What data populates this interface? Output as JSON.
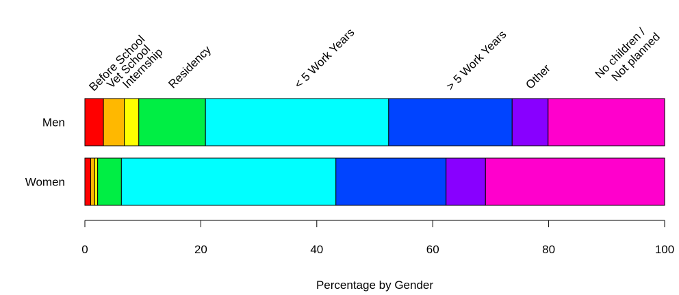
{
  "chart_data": {
    "type": "bar",
    "orientation": "horizontal",
    "stacked": true,
    "xlabel": "Percentage by Gender",
    "xlim": [
      0,
      100
    ],
    "xticks": [
      0,
      20,
      40,
      60,
      80,
      100
    ],
    "grid": false,
    "legend": "none",
    "categories": [
      "Men",
      "Women"
    ],
    "segment_labels": [
      "Before School",
      "Vet School",
      "Internship",
      "Residency",
      "< 5 Work Years",
      "> 5 Work Years",
      "Other",
      "No children /\nNot planned"
    ],
    "colors": [
      "#ff0000",
      "#ffb800",
      "#ffff00",
      "#00ee44",
      "#00ffff",
      "#0044ff",
      "#8800ff",
      "#ff00cc"
    ],
    "series": [
      {
        "name": "Before School",
        "values": [
          3.2,
          1.0
        ]
      },
      {
        "name": "Vet School",
        "values": [
          3.6,
          0.7
        ]
      },
      {
        "name": "Internship",
        "values": [
          2.5,
          0.5
        ]
      },
      {
        "name": "Residency",
        "values": [
          11.5,
          4.1
        ]
      },
      {
        "name": "< 5 Work Years",
        "values": [
          31.6,
          37.0
        ]
      },
      {
        "name": "> 5 Work Years",
        "values": [
          21.3,
          19.0
        ]
      },
      {
        "name": "Other",
        "values": [
          6.2,
          6.8
        ]
      },
      {
        "name": "No children /\nNot planned",
        "values": [
          20.1,
          30.9
        ]
      }
    ]
  }
}
